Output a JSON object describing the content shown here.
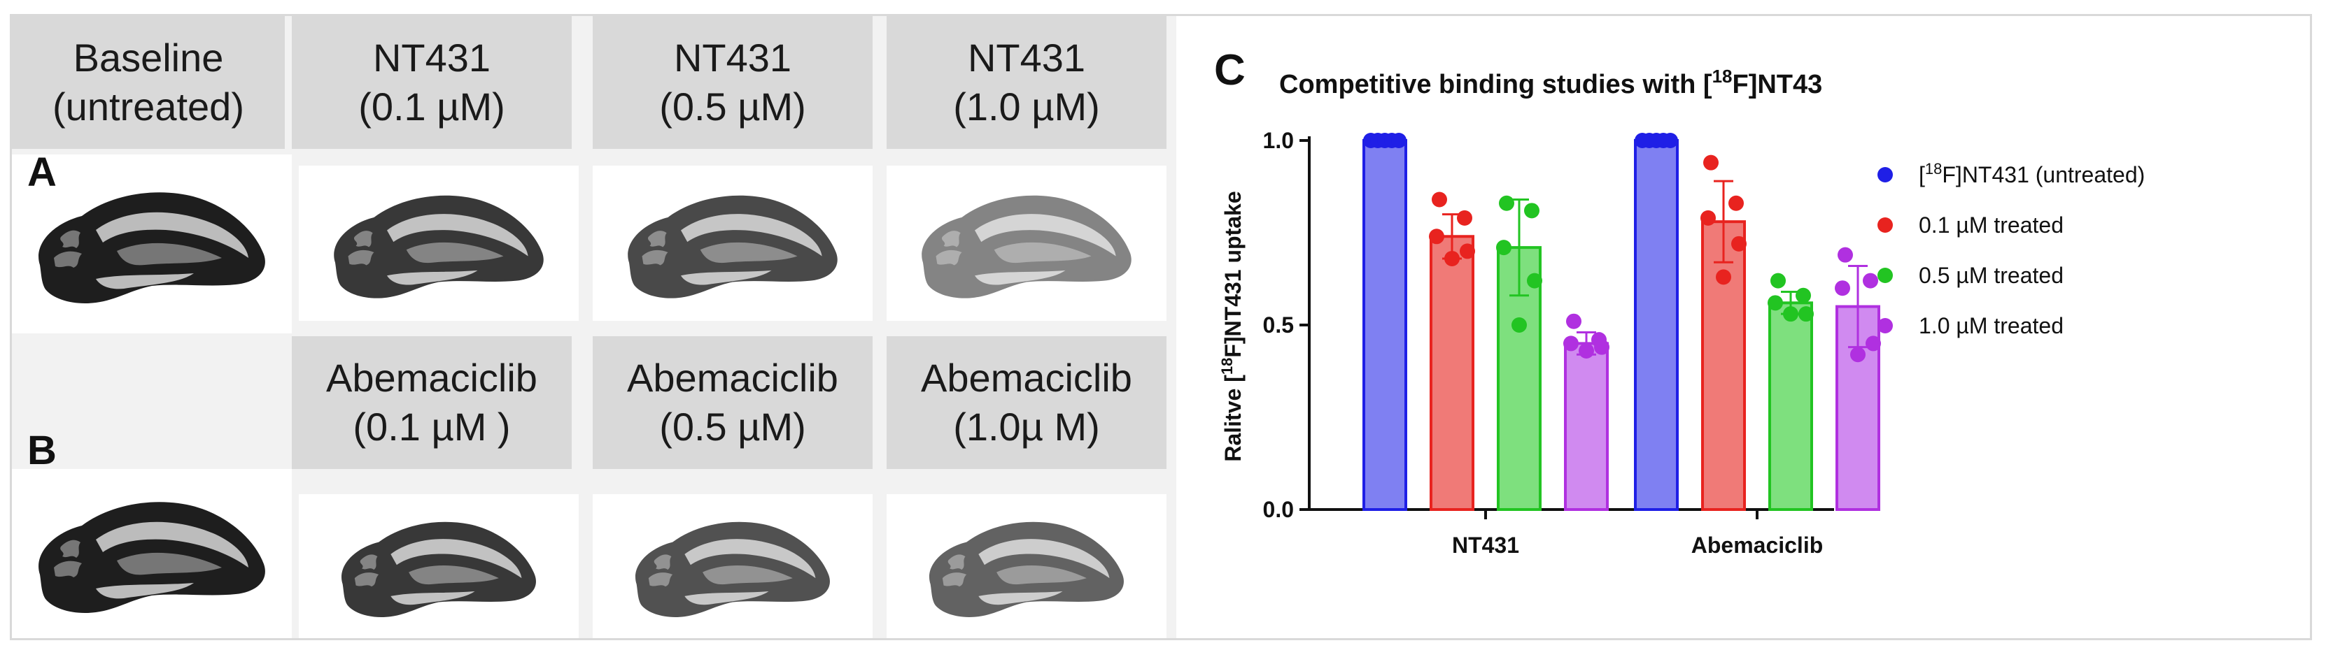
{
  "panels": {
    "a_label": "A",
    "b_label": "B",
    "c_label": "C"
  },
  "headers_a": [
    {
      "line1": "Baseline",
      "line2": "(untreated)"
    },
    {
      "line1": "NT431",
      "line2": "(0.1 µM)"
    },
    {
      "line1": "NT431",
      "line2": "(0.5 µM)"
    },
    {
      "line1": "NT431",
      "line2": "(1.0 µM)"
    }
  ],
  "headers_b": [
    {
      "line1": "Abemaciclib",
      "line2": "(0.1 µM )"
    },
    {
      "line1": "Abemaciclib",
      "line2": "(0.5 µM)"
    },
    {
      "line1": "Abemaciclib",
      "line2": "(1.0µ M)"
    }
  ],
  "brain_intensity": {
    "row_a": [
      1.0,
      0.85,
      0.75,
      0.4
    ],
    "row_b": [
      1.0,
      0.85,
      0.7,
      0.6
    ]
  },
  "chart_data": {
    "type": "bar",
    "title_prefix": "Competitive binding studies with [",
    "title_sup": "18",
    "title_suffix": "F]NT43",
    "ylabel_prefix": "Ralitve [",
    "ylabel_sup": "18",
    "ylabel_suffix": "F]NT431 uptake",
    "xlabel": "",
    "categories": [
      "NT431",
      "Abemaciclib"
    ],
    "ylim": [
      0.0,
      1.0
    ],
    "yticks": [
      "0.0",
      "0.5",
      "1.0"
    ],
    "ytick_values": [
      0.0,
      0.5,
      1.0
    ],
    "series": [
      {
        "name": "[18F]NT431 (untreated)",
        "legend_prefix": "[",
        "legend_sup": "18",
        "legend_suffix": "F]NT431 (untreated)",
        "color": "#1f1fe6",
        "fill": "#7f80f2",
        "values": [
          1.0,
          1.0
        ],
        "sd": [
          0.0,
          0.0
        ],
        "points": [
          [
            1.0,
            1.0,
            1.0,
            1.0,
            1.0
          ],
          [
            1.0,
            1.0,
            1.0,
            1.0,
            1.0
          ]
        ]
      },
      {
        "name": "0.1 µM treated",
        "legend_prefix": "0.1 µM treated",
        "legend_sup": "",
        "legend_suffix": "",
        "color": "#e8231f",
        "fill": "#f07a77",
        "values": [
          0.74,
          0.78
        ],
        "sd": [
          0.06,
          0.11
        ],
        "points": [
          [
            0.84,
            0.79,
            0.74,
            0.7,
            0.68
          ],
          [
            0.94,
            0.83,
            0.79,
            0.72,
            0.63
          ]
        ]
      },
      {
        "name": "0.5 µM treated",
        "legend_prefix": "0.5 µM treated",
        "legend_sup": "",
        "legend_suffix": "",
        "color": "#22c422",
        "fill": "#7ee07e",
        "values": [
          0.71,
          0.56
        ],
        "sd": [
          0.13,
          0.03
        ],
        "points": [
          [
            0.83,
            0.81,
            0.71,
            0.62,
            0.5
          ],
          [
            0.62,
            0.58,
            0.56,
            0.53,
            0.53
          ]
        ]
      },
      {
        "name": "1.0 µM treated",
        "legend_prefix": "1.0 µM treated",
        "legend_sup": "",
        "legend_suffix": "",
        "color": "#b030e0",
        "fill": "#d08af0",
        "values": [
          0.45,
          0.55
        ],
        "sd": [
          0.03,
          0.11
        ],
        "points": [
          [
            0.51,
            0.46,
            0.45,
            0.44,
            0.43
          ],
          [
            0.69,
            0.62,
            0.6,
            0.45,
            0.42
          ]
        ]
      }
    ]
  }
}
